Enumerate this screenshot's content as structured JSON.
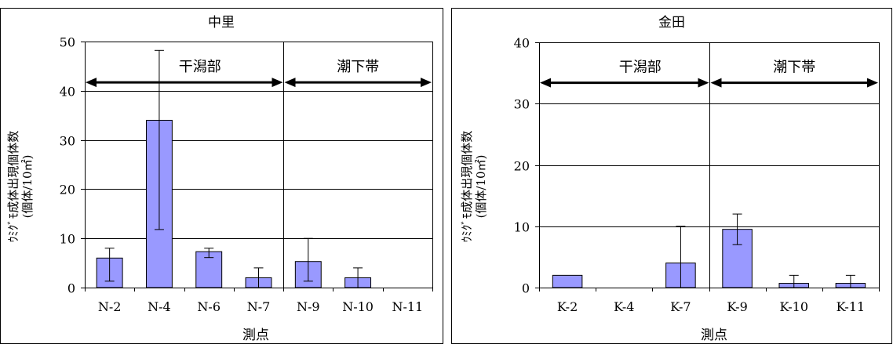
{
  "chart_data": [
    {
      "type": "bar",
      "title": "中里",
      "xlabel": "測点",
      "ylabel_line1": "ｳﾐｸﾞﾓ成体出現個体数",
      "ylabel_line2": "(個体/10㎡)",
      "ylim": [
        0,
        50
      ],
      "yticks": [
        0,
        10,
        20,
        30,
        40,
        50
      ],
      "grid": true,
      "bar_color": "#9999ff",
      "categories": [
        "N-2",
        "N-4",
        "N-6",
        "N-7",
        "N-9",
        "N-10",
        "N-11"
      ],
      "values": [
        6,
        34,
        7.3,
        2,
        5.3,
        2,
        0
      ],
      "error_low": [
        1.3,
        11.8,
        6.1,
        0,
        1.3,
        0,
        0
      ],
      "error_high": [
        8,
        48.2,
        8,
        4,
        10,
        4,
        0
      ],
      "zones": [
        {
          "label": "干潟部",
          "from_index": 0,
          "to_index": 3
        },
        {
          "label": "潮下帯",
          "from_index": 4,
          "to_index": 6
        }
      ],
      "zone_level": 41.7
    },
    {
      "type": "bar",
      "title": "金田",
      "xlabel": "測点",
      "ylabel_line1": "ｳﾐｸﾞﾓ成体出現個体数",
      "ylabel_line2": "(個体/10㎡)",
      "ylim": [
        0,
        40
      ],
      "yticks": [
        0,
        10,
        20,
        30,
        40
      ],
      "grid": true,
      "bar_color": "#9999ff",
      "categories": [
        "K-2",
        "K-4",
        "K-7",
        "K-9",
        "K-10",
        "K-11"
      ],
      "values": [
        2,
        0,
        4,
        9.5,
        0.7,
        0.7
      ],
      "error_low": [
        2,
        0,
        0,
        7,
        0,
        0
      ],
      "error_high": [
        2,
        0,
        10,
        12,
        2,
        2
      ],
      "zones": [
        {
          "label": "干潟部",
          "from_index": 0,
          "to_index": 2
        },
        {
          "label": "潮下帯",
          "from_index": 3,
          "to_index": 5
        }
      ],
      "zone_level": 33.4
    }
  ]
}
